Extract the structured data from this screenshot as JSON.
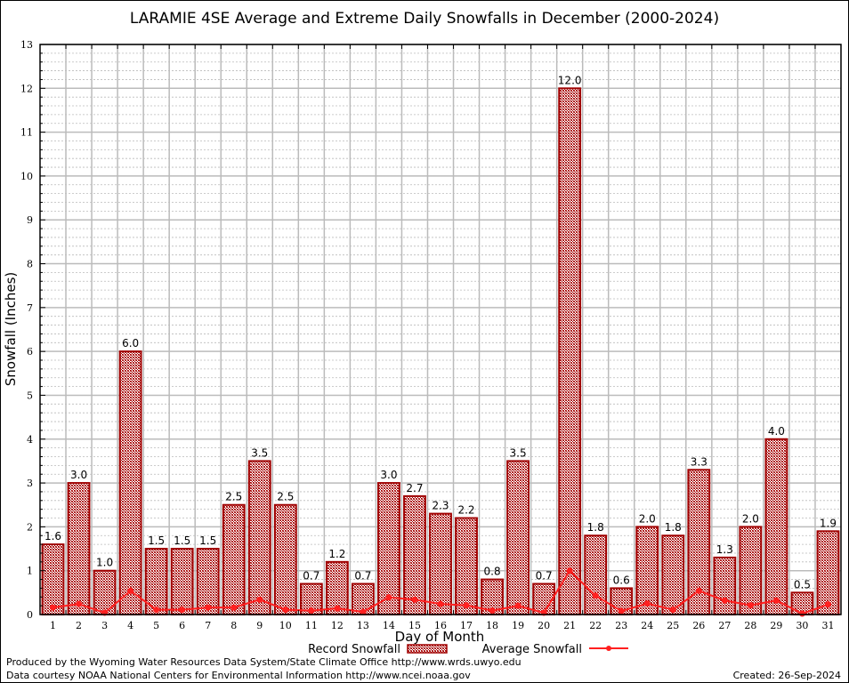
{
  "chart_data": {
    "type": "bar",
    "title": "LARAMIE 4SE Average and Extreme Daily Snowfalls in December (2000-2024)",
    "xlabel": "Day of Month",
    "ylabel": "Snowfall (Inches)",
    "ylim": [
      0,
      13
    ],
    "xlim": [
      0.5,
      31.5
    ],
    "grid": true,
    "categories": [
      1,
      2,
      3,
      4,
      5,
      6,
      7,
      8,
      9,
      10,
      11,
      12,
      13,
      14,
      15,
      16,
      17,
      18,
      19,
      20,
      21,
      22,
      23,
      24,
      25,
      26,
      27,
      28,
      29,
      30,
      31
    ],
    "yticks": [
      0,
      1,
      2,
      3,
      4,
      5,
      6,
      7,
      8,
      9,
      10,
      11,
      12,
      13
    ],
    "series": [
      {
        "name": "Record Snowfall",
        "type": "bar",
        "color": "#a00000",
        "values": [
          1.6,
          3.0,
          1.0,
          6.0,
          1.5,
          1.5,
          1.5,
          2.5,
          3.5,
          2.5,
          0.7,
          1.2,
          0.7,
          3.0,
          2.7,
          2.3,
          2.2,
          0.8,
          3.5,
          0.7,
          12.0,
          1.8,
          0.6,
          2.0,
          1.8,
          3.3,
          1.3,
          2.0,
          4.0,
          0.5,
          1.9
        ],
        "labels": [
          "1.6",
          "3.0",
          "1.0",
          "6.0",
          "1.5",
          "1.5",
          "1.5",
          "2.5",
          "3.5",
          "2.5",
          "0.7",
          "1.2",
          "0.7",
          "3.0",
          "2.7",
          "2.3",
          "2.2",
          "0.8",
          "3.5",
          "0.7",
          "12.0",
          "1.8",
          "0.6",
          "2.0",
          "1.8",
          "3.3",
          "1.3",
          "2.0",
          "4.0",
          "0.5",
          "1.9"
        ]
      },
      {
        "name": "Average Snowfall",
        "type": "line",
        "color": "#ff2020",
        "values": [
          0.16,
          0.24,
          0.04,
          0.54,
          0.11,
          0.11,
          0.16,
          0.16,
          0.34,
          0.11,
          0.09,
          0.14,
          0.06,
          0.39,
          0.34,
          0.24,
          0.21,
          0.09,
          0.2,
          0.04,
          1.0,
          0.43,
          0.08,
          0.25,
          0.11,
          0.54,
          0.32,
          0.21,
          0.32,
          0.02,
          0.23
        ]
      }
    ],
    "legend": "bottom-center"
  },
  "footer": {
    "line1": "Produced by the Wyoming Water Resources Data System/State Climate Office http://www.wrds.uwyo.edu",
    "line2": "Data courtesy NOAA National Centers for Environmental Information http://www.ncei.noaa.gov",
    "created": "Created:  26-Sep-2024"
  }
}
